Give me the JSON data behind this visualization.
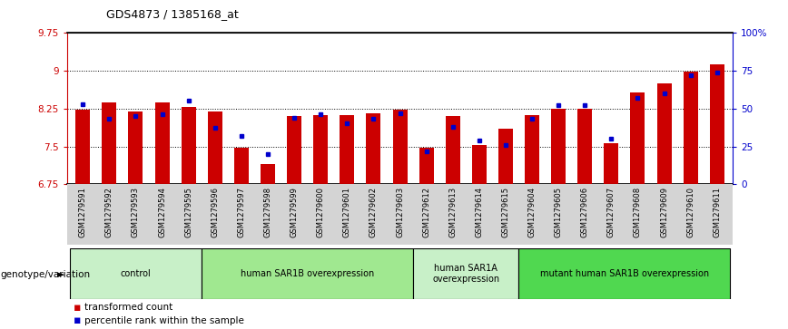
{
  "title": "GDS4873 / 1385168_at",
  "samples": [
    "GSM1279591",
    "GSM1279592",
    "GSM1279593",
    "GSM1279594",
    "GSM1279595",
    "GSM1279596",
    "GSM1279597",
    "GSM1279598",
    "GSM1279599",
    "GSM1279600",
    "GSM1279601",
    "GSM1279602",
    "GSM1279603",
    "GSM1279612",
    "GSM1279613",
    "GSM1279614",
    "GSM1279615",
    "GSM1279604",
    "GSM1279605",
    "GSM1279606",
    "GSM1279607",
    "GSM1279608",
    "GSM1279609",
    "GSM1279610",
    "GSM1279611"
  ],
  "transformed_count": [
    8.22,
    8.38,
    8.2,
    8.38,
    8.28,
    8.2,
    7.47,
    7.15,
    8.1,
    8.12,
    8.12,
    8.15,
    8.22,
    7.47,
    8.1,
    7.53,
    7.85,
    8.12,
    8.24,
    8.24,
    7.57,
    8.57,
    8.75,
    8.98,
    9.12
  ],
  "percentile_rank": [
    53,
    43,
    45,
    46,
    55,
    37,
    32,
    20,
    44,
    46,
    40,
    43,
    47,
    22,
    38,
    29,
    26,
    43,
    52,
    52,
    30,
    57,
    60,
    72,
    74
  ],
  "groups": [
    {
      "label": "control",
      "start": 0,
      "end": 5,
      "color": "#c8f0c8"
    },
    {
      "label": "human SAR1B overexpression",
      "start": 5,
      "end": 13,
      "color": "#a0e890"
    },
    {
      "label": "human SAR1A\noverexpression",
      "start": 13,
      "end": 17,
      "color": "#c8f0c8"
    },
    {
      "label": "mutant human SAR1B overexpression",
      "start": 17,
      "end": 25,
      "color": "#50d850"
    }
  ],
  "ylim": [
    6.75,
    9.75
  ],
  "yticks": [
    6.75,
    7.5,
    8.25,
    9.0,
    9.75
  ],
  "ytick_labels": [
    "6.75",
    "7.5",
    "8.25",
    "9",
    "9.75"
  ],
  "y2ticks": [
    0,
    25,
    50,
    75,
    100
  ],
  "y2tick_labels": [
    "0",
    "25",
    "50",
    "75",
    "100%"
  ],
  "bar_color": "#cc0000",
  "dot_color": "#0000cc",
  "group_bg_colors": [
    "#c8f0c8",
    "#a0e890",
    "#c8f0c8",
    "#50d850"
  ],
  "legend_bar": "transformed count",
  "legend_dot": "percentile rank within the sample",
  "genotype_label": "genotype/variation"
}
